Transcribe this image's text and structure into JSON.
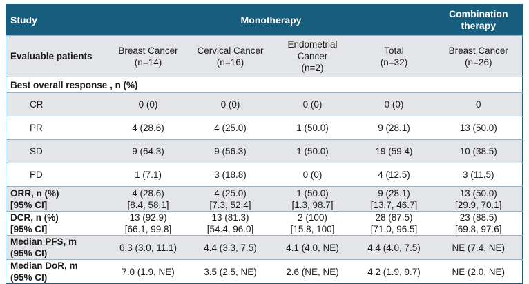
{
  "header": {
    "study": "Study",
    "monotherapy": "Monotherapy",
    "combination_line1": "Combination",
    "combination_line2": "therapy"
  },
  "evaluable": {
    "label": "Evaluable patients",
    "cols": [
      [
        "Breast Cancer",
        "(n=14)"
      ],
      [
        "Cervical Cancer",
        "(n=16)"
      ],
      [
        "Endometrial",
        "Cancer",
        "(n=2)"
      ],
      [
        "Total",
        "(n=32)"
      ],
      [
        "Breast Cancer",
        "(n=26)"
      ]
    ]
  },
  "best_overall": "Best overall response , n (%)",
  "rows": [
    {
      "label": "CR",
      "values": [
        "0 (0)",
        "0 (0)",
        "0 (0)",
        "0 (0)",
        "0"
      ]
    },
    {
      "label": "PR",
      "values": [
        "4 (28.6)",
        "4 (25.0)",
        "1 (50.0)",
        "9 (28.1)",
        "13 (50.0)"
      ]
    },
    {
      "label": "SD",
      "values": [
        "9 (64.3)",
        "9 (56.3)",
        "1 (50.0)",
        "19 (59.4)",
        "10 (38.5)"
      ]
    },
    {
      "label": "PD",
      "values": [
        "1 (7.1)",
        "3 (18.8)",
        "0 (0)",
        "4 (12.5)",
        "3 (11.5)"
      ]
    }
  ],
  "metrics": [
    {
      "label1": "ORR, n (%)",
      "label2": "[95% CI]",
      "values": [
        [
          "4 (28.6)",
          "[8.4, 58.1]"
        ],
        [
          "4 (25.0)",
          "[7.3, 52.4]"
        ],
        [
          "1 (50.0)",
          "[1.3, 98.7]"
        ],
        [
          "9 (28.1)",
          "[13.7, 46.7]"
        ],
        [
          "13 (50.0)",
          "[29.9, 70.1]"
        ]
      ]
    },
    {
      "label1": "DCR, n (%)",
      "label2": "[95% CI]",
      "values": [
        [
          "13 (92.9)",
          "[66.1, 99.8]"
        ],
        [
          "13 (81.3)",
          "[54.4, 96.0]"
        ],
        [
          "2 (100)",
          "[15.8, 100]"
        ],
        [
          "28 (87.5)",
          "[71.0, 96.5]"
        ],
        [
          "23 (88.5)",
          "[69.8, 97.6]"
        ]
      ]
    },
    {
      "label1": "Median PFS, m",
      "label2": "(95% CI)",
      "values": [
        [
          "6.3 (3.0, 11.1)"
        ],
        [
          "4.4 (3.3, 7.5)"
        ],
        [
          "4.1 (4.0, NE)"
        ],
        [
          "4.4 (4.0, 7.5)"
        ],
        [
          "NE (7.4, NE)"
        ]
      ]
    },
    {
      "label1": "Median DoR, m",
      "label2": "(95% CI)",
      "values": [
        [
          "7.0 (1.9, NE)"
        ],
        [
          "3.5 (2.5, NE)"
        ],
        [
          "2.6 (NE, NE)"
        ],
        [
          "4.2 (1.9, 9.7)"
        ],
        [
          "NE (2.0, NE)"
        ]
      ]
    }
  ],
  "colors": {
    "header_bg": "#175e7e",
    "gray_row": "#e3e5e9"
  }
}
